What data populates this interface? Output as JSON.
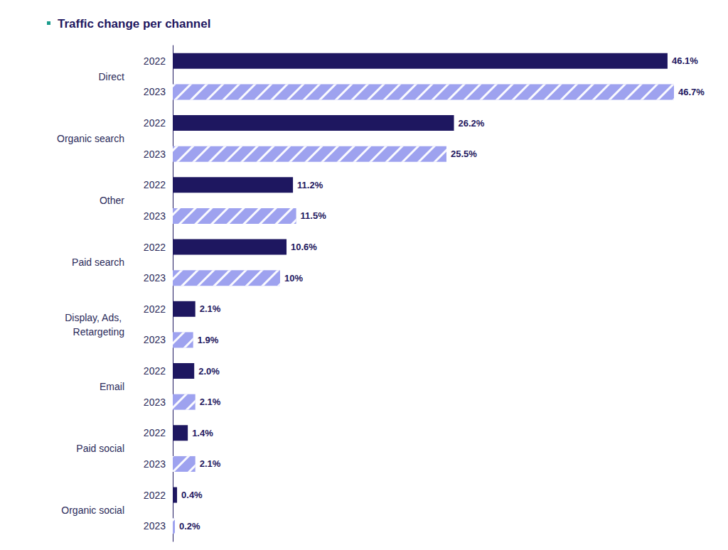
{
  "chart_data": {
    "type": "bar",
    "title": "Traffic change per channel",
    "orientation": "horizontal",
    "categories": [
      "Direct",
      "Organic search",
      "Other",
      "Paid search",
      "Display, Ads, Retargeting",
      "Email",
      "Paid social",
      "Organic social"
    ],
    "series": [
      {
        "name": "2022",
        "color": "#1e1760",
        "values": [
          46.1,
          26.2,
          11.2,
          10.6,
          2.1,
          2.0,
          1.4,
          0.4
        ],
        "value_labels": [
          "46.1%",
          "26.2%",
          "11.2%",
          "10.6%",
          "2.1%",
          "2.0%",
          "1.4%",
          "0.4%"
        ]
      },
      {
        "name": "2023",
        "color": "#9ea2ef",
        "values": [
          46.7,
          25.5,
          11.5,
          10,
          1.9,
          2.1,
          2.1,
          0.2
        ],
        "value_labels": [
          "46.7%",
          "25.5%",
          "11.5%",
          "10%",
          "1.9%",
          "2.1%",
          "2.1%",
          "0.2%"
        ]
      }
    ],
    "xlim": [
      0,
      46.7
    ],
    "data_labels": true,
    "tick_labels": false,
    "grid": false
  }
}
